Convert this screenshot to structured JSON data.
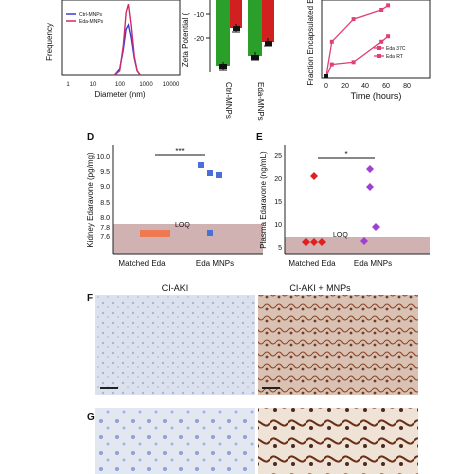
{
  "panel_A": {
    "ylabel": "Frequency",
    "xlabel": "Diameter (nm)",
    "xticks": [
      "1",
      "10",
      "100",
      "1000",
      "10000"
    ],
    "legend": [
      "Ctrl-MNPs",
      "Eda-MNPs"
    ],
    "colors": {
      "ctrl": "#3a3ad6",
      "eda": "#cc2a6a"
    }
  },
  "panel_B": {
    "ylabel": "Zeta Potential (",
    "yticks": [
      "-10",
      "-20"
    ],
    "categories": [
      "Ctrl-MNPs",
      "Eda-MNPs"
    ],
    "colors": {
      "green": "#2aa02a",
      "red": "#d02020"
    }
  },
  "panel_C": {
    "ylabel": "Fraction Encapsulated E",
    "xlabel": "Time (hours)",
    "xticks": [
      "0",
      "20",
      "40",
      "60",
      "80"
    ],
    "legend": [
      "Eda 37C",
      "Eda RT"
    ],
    "color": "#e0407a"
  },
  "panel_D": {
    "letter": "D",
    "ylabel": "Kidney Edaravone (pg/mg)",
    "yticks": [
      "10.0",
      "9.5",
      "9.0",
      "8.5",
      "8.0",
      "7.8",
      "7.6"
    ],
    "categories": [
      "Matched Eda",
      "Eda MNPs"
    ],
    "sig": "***",
    "loq": "LOQ"
  },
  "panel_E": {
    "letter": "E",
    "ylabel": "Plasma Edaravone (ng/mL)",
    "yticks": [
      "25",
      "20",
      "15",
      "10",
      "5"
    ],
    "categories": [
      "Matched Eda",
      "Eda MNPs"
    ],
    "sig": "*",
    "loq": "LOQ"
  },
  "panel_F": {
    "letter": "F",
    "left_title": "CI-AKI",
    "right_title": "CI-AKI + MNPs"
  },
  "panel_G": {
    "letter": "G"
  },
  "chart_data": [
    {
      "type": "line",
      "panel": "A",
      "xlabel": "Diameter (nm)",
      "ylabel": "Frequency",
      "x_scale": "log",
      "xlim": [
        1,
        10000
      ],
      "series": [
        {
          "name": "Ctrl-MNPs",
          "x": [
            60,
            90,
            120,
            150,
            180,
            220,
            280,
            350,
            450
          ],
          "y": [
            0,
            3,
            12,
            22,
            24,
            18,
            8,
            2,
            0
          ]
        },
        {
          "name": "Eda-MNPs",
          "x": [
            60,
            90,
            120,
            150,
            180,
            220,
            280,
            350,
            450
          ],
          "y": [
            0,
            2,
            14,
            30,
            34,
            24,
            9,
            2,
            0
          ]
        }
      ]
    },
    {
      "type": "bar",
      "panel": "B",
      "ylabel": "Zeta Potential (",
      "categories": [
        "Ctrl-MNPs",
        "Eda-MNPs"
      ],
      "series": [
        {
          "values": [
            -24,
            -19
          ]
        },
        {
          "values": [
            -16,
            -12
          ]
        }
      ],
      "ylim": [
        -25,
        -5
      ]
    },
    {
      "type": "line",
      "panel": "C",
      "xlabel": "Time (hours)",
      "ylabel": "Fraction Encapsulated E",
      "xlim": [
        0,
        80
      ],
      "series": [
        {
          "name": "Eda 37C",
          "x": [
            0,
            5,
            24,
            48,
            54
          ],
          "y": [
            0.0,
            0.3,
            0.5,
            0.58,
            0.62
          ]
        },
        {
          "name": "Eda RT",
          "x": [
            0,
            5,
            24,
            48,
            54
          ],
          "y": [
            0.0,
            0.1,
            0.12,
            0.3,
            0.35
          ]
        }
      ]
    },
    {
      "type": "scatter",
      "panel": "D",
      "ylabel": "Kidney Edaravone (pg/mg)",
      "categories": [
        "Matched Eda",
        "Eda MNPs"
      ],
      "series": [
        {
          "values": [
            7.7,
            7.7,
            7.7,
            7.7
          ]
        },
        {
          "values": [
            9.7,
            9.4,
            9.3,
            7.7
          ]
        }
      ],
      "loq": 7.8
    },
    {
      "type": "scatter",
      "panel": "E",
      "ylabel": "Plasma Edaravone (ng/mL)",
      "categories": [
        "Matched Eda",
        "Eda MNPs"
      ],
      "series": [
        {
          "values": [
            21,
            7.5,
            7.5,
            7.5
          ]
        },
        {
          "values": [
            23,
            18,
            11,
            7.5
          ]
        }
      ],
      "ylim": [
        5,
        25
      ],
      "loq": 10
    }
  ]
}
